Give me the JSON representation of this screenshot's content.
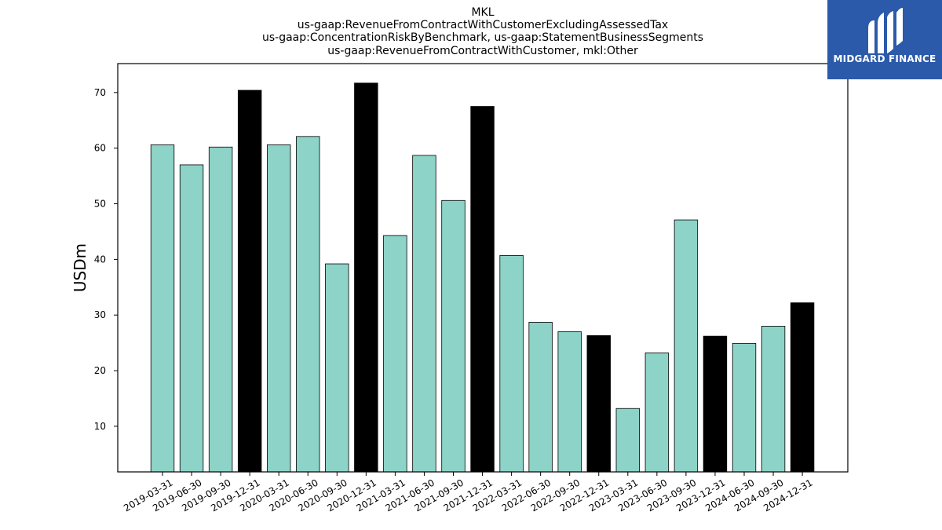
{
  "logo": {
    "text": "MIDGARD FINANCE",
    "icon": "midgard-logo-icon",
    "background": "#2b5aab"
  },
  "chart_data": {
    "type": "bar",
    "title_lines": [
      "MKL",
      "us-gaap:RevenueFromContractWithCustomerExcludingAssessedTax",
      "us-gaap:ConcentrationRiskByBenchmark, us-gaap:StatementBusinessSegments",
      "us-gaap:RevenueFromContractWithCustomer, mkl:Other"
    ],
    "xlabel": "",
    "ylabel": "USDm",
    "ylim": [
      1.8,
      75.2
    ],
    "yticks": [
      10,
      20,
      30,
      40,
      50,
      60,
      70
    ],
    "grid": false,
    "legend": "none",
    "colors": {
      "quarter": "#8dd3c7",
      "year_end": "#000000",
      "edge": "#000000"
    },
    "categories": [
      "2019-03-31",
      "2019-06-30",
      "2019-09-30",
      "2019-12-31",
      "2020-03-31",
      "2020-06-30",
      "2020-09-30",
      "2020-12-31",
      "2021-03-31",
      "2021-06-30",
      "2021-09-30",
      "2021-12-31",
      "2022-03-31",
      "2022-06-30",
      "2022-09-30",
      "2022-12-31",
      "2023-03-31",
      "2023-06-30",
      "2023-09-30",
      "2023-12-31",
      "2024-06-30",
      "2024-09-30",
      "2024-12-31"
    ],
    "values": [
      60.6,
      57.0,
      60.2,
      70.4,
      60.6,
      62.1,
      39.2,
      71.7,
      44.3,
      58.7,
      50.6,
      67.5,
      40.7,
      28.7,
      27.0,
      26.3,
      13.2,
      23.2,
      47.1,
      26.2,
      24.9,
      28.0,
      32.2
    ],
    "year_end": [
      false,
      false,
      false,
      true,
      false,
      false,
      false,
      true,
      false,
      false,
      false,
      true,
      false,
      false,
      false,
      true,
      false,
      false,
      false,
      true,
      false,
      false,
      true
    ]
  }
}
